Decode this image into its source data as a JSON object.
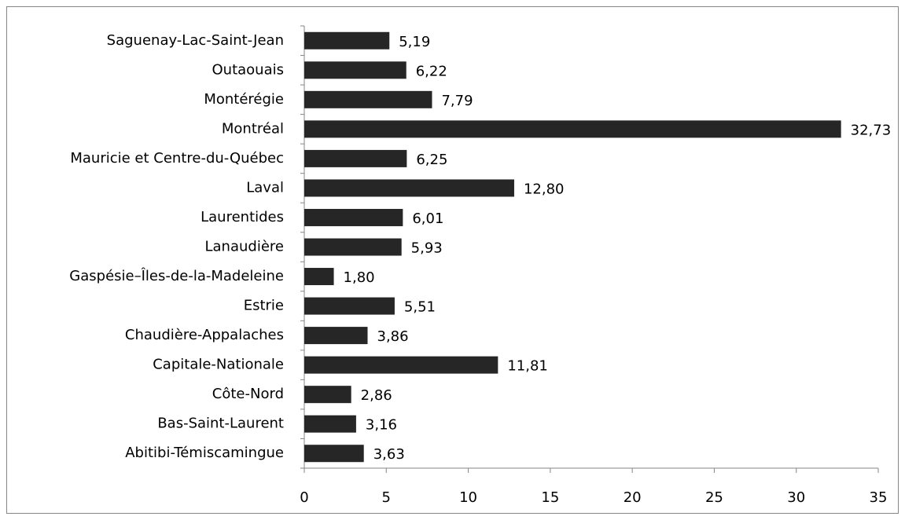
{
  "chart_data": {
    "type": "bar",
    "orientation": "horizontal",
    "categories": [
      "Saguenay-Lac-Saint-Jean",
      "Outaouais",
      "Montérégie",
      "Montréal",
      "Mauricie et Centre-du-Québec",
      "Laval",
      "Laurentides",
      "Lanaudière",
      "Gaspésie–Îles-de-la-Madeleine",
      "Estrie",
      "Chaudière-Appalaches",
      "Capitale-Nationale",
      "Côte-Nord",
      "Bas-Saint-Laurent",
      "Abitibi-Témiscamingue"
    ],
    "values": [
      5.19,
      6.22,
      7.79,
      32.73,
      6.25,
      12.8,
      6.01,
      5.93,
      1.8,
      5.51,
      3.86,
      11.81,
      2.86,
      3.16,
      3.63
    ],
    "value_labels": [
      "5,19",
      "6,22",
      "7,79",
      "32,73",
      "6,25",
      "12,80",
      "6,01",
      "5,93",
      "1,80",
      "5,51",
      "3,86",
      "11,81",
      "2,86",
      "3,16",
      "3,63"
    ],
    "color": "#262626",
    "xlim": [
      0,
      35
    ],
    "xticks": [
      0,
      5,
      10,
      15,
      20,
      25,
      30,
      35
    ],
    "grid": false
  }
}
